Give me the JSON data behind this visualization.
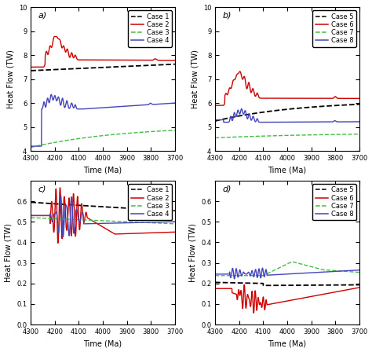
{
  "xlim": [
    4300,
    3700
  ],
  "panel_a": {
    "ylabel": "Heat Flow (TW)",
    "xlabel": "Time (Ma)",
    "ylim": [
      4,
      10
    ],
    "yticks": [
      4,
      5,
      6,
      7,
      8,
      9,
      10
    ],
    "label": "a)",
    "legend_cases": [
      "Case 1",
      "Case 2",
      "Case 3",
      "Case 4"
    ]
  },
  "panel_b": {
    "ylabel": "Heat Flow (TW)",
    "xlabel": "Time (Ma)",
    "ylim": [
      4,
      10
    ],
    "yticks": [
      4,
      5,
      6,
      7,
      8,
      9,
      10
    ],
    "label": "b)",
    "legend_cases": [
      "Case 5",
      "Case 6",
      "Case 7",
      "Case 8"
    ]
  },
  "panel_c": {
    "ylabel": "Heat Flow (TW)",
    "xlabel": "Time (Ma)",
    "ylim": [
      0,
      0.7
    ],
    "yticks": [
      0,
      0.1,
      0.2,
      0.3,
      0.4,
      0.5,
      0.6
    ],
    "label": "c)",
    "legend_cases": [
      "Case 1",
      "Case 2",
      "Case 3",
      "Case 4"
    ]
  },
  "panel_d": {
    "ylabel": "Heat Flow (TW)",
    "xlabel": "Time (Ma)",
    "ylim": [
      0,
      0.7
    ],
    "yticks": [
      0,
      0.1,
      0.2,
      0.3,
      0.4,
      0.5,
      0.6
    ],
    "label": "d)",
    "legend_cases": [
      "Case 5",
      "Case 6",
      "Case 7",
      "Case 8"
    ]
  },
  "colors": {
    "case1": "#000000",
    "case2": "#cc0000",
    "case3": "#44bb44",
    "case4": "#4444bb"
  },
  "xticks": [
    4300,
    4200,
    4100,
    4000,
    3900,
    3800,
    3700
  ]
}
